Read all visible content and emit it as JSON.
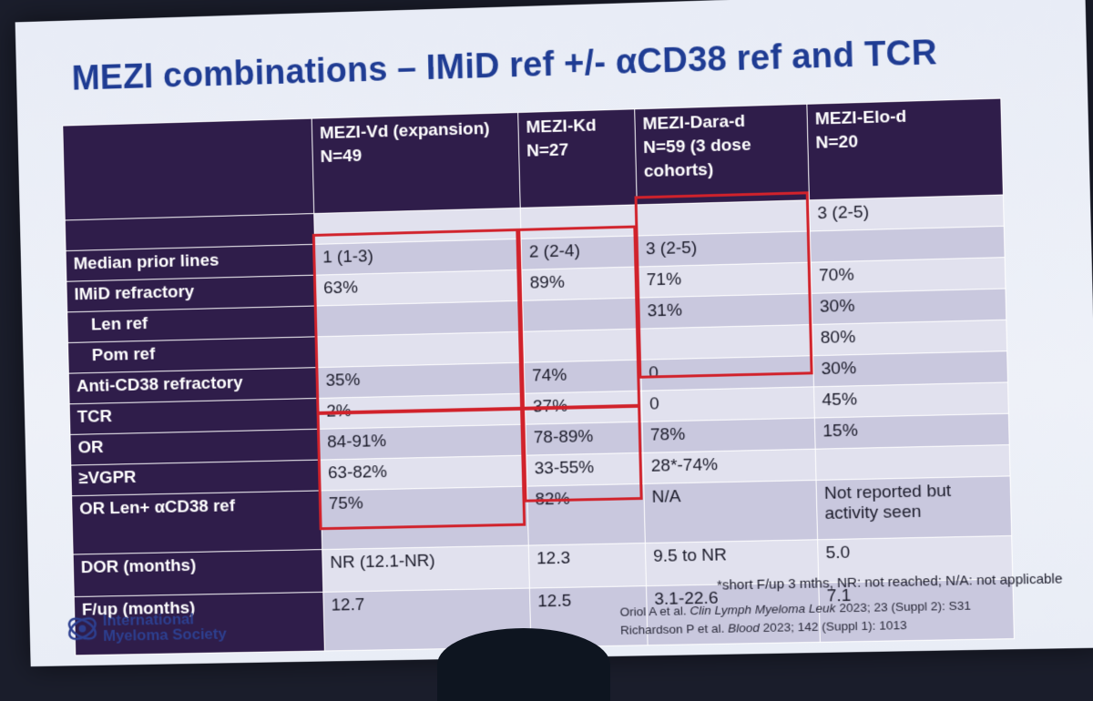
{
  "slide": {
    "title": "MEZI combinations – IMiD ref +/- αCD38 ref and TCR",
    "columns": [
      {
        "line1": "MEZI-Vd (expansion)",
        "line2": "N=49"
      },
      {
        "line1": "MEZI-Kd",
        "line2": "N=27"
      },
      {
        "line1": "MEZI-Dara-d",
        "line2": "N=59 (3 dose cohorts)"
      },
      {
        "line1": "MEZI-Elo-d",
        "line2": "N=20"
      }
    ],
    "rows": [
      {
        "label": "",
        "values": [
          "",
          "",
          "",
          "3 (2-5)"
        ]
      },
      {
        "label": "Median prior lines",
        "values": [
          "1 (1-3)",
          "2 (2-4)",
          "3 (2-5)",
          ""
        ]
      },
      {
        "label": "IMiD refractory",
        "values": [
          "63%",
          "89%",
          "71%",
          "70%"
        ]
      },
      {
        "label": "Len ref",
        "values": [
          "",
          "",
          "31%",
          "30%"
        ]
      },
      {
        "label": "Pom ref",
        "values": [
          "",
          "",
          "",
          "80%"
        ]
      },
      {
        "label": "Anti-CD38 refractory",
        "values": [
          "35%",
          "74%",
          "0",
          "30%"
        ]
      },
      {
        "label": "TCR",
        "values": [
          "2%",
          "37%",
          "0",
          "45%"
        ]
      },
      {
        "label": "OR",
        "values": [
          "84-91%",
          "78-89%",
          "78%",
          "15%"
        ]
      },
      {
        "label": "≥VGPR",
        "values": [
          "63-82%",
          "33-55%",
          "28*-74%",
          ""
        ]
      },
      {
        "label": "OR Len+ αCD38 ref",
        "values": [
          "75%",
          "82%",
          "N/A",
          "Not reported but activity seen"
        ]
      },
      {
        "label": "DOR (months)",
        "values": [
          "NR (12.1-NR)",
          "12.3",
          "9.5 to NR",
          "5.0"
        ]
      },
      {
        "label": "F/up (months)",
        "values": [
          "12.7",
          "12.5",
          "3.1-22.6",
          "7.1"
        ]
      }
    ],
    "footnote": "*short F/up 3 mths, NR: not reached; N/A: not applicable",
    "ref1": {
      "authors": "Oriol A et al. ",
      "journal": "Clin Lymph Myeloma Leuk",
      "rest": " 2023; 23 (Suppl 2): S31"
    },
    "ref2": {
      "authors": "Richardson P et al. ",
      "journal": "Blood",
      "rest": " 2023; 142 (Suppl 1): 1013"
    },
    "logo": {
      "line1": "International",
      "line2": "Myeloma Society"
    },
    "colors": {
      "title": "#1f3c93",
      "header": "#2f1d4a",
      "highlight": "#d1222b"
    }
  }
}
